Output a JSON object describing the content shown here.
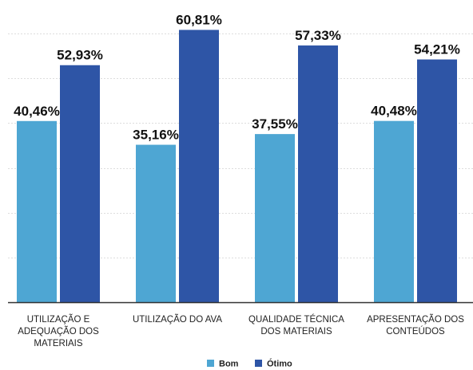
{
  "chart_data": {
    "type": "bar",
    "categories": [
      [
        "UTILIZAÇÃO E",
        "ADEQUAÇÃO DOS",
        "MATERIAIS"
      ],
      [
        "UTILIZAÇÃO DO AVA"
      ],
      [
        "QUALIDADE TÉCNICA",
        "DOS MATERIAIS"
      ],
      [
        "APRESENTAÇÃO DOS",
        "CONTEÚDOS"
      ]
    ],
    "series": [
      {
        "name": "Bom",
        "color": "#4ea6d3",
        "values": [
          40.46,
          35.16,
          37.55,
          40.48
        ],
        "labels": [
          "40,46%",
          "35,16%",
          "37,55%",
          "40,48%"
        ]
      },
      {
        "name": "Ótimo",
        "color": "#2e55a6",
        "values": [
          52.93,
          60.81,
          57.33,
          54.21
        ],
        "labels": [
          "52,93%",
          "60,81%",
          "57,33%",
          "54,21%"
        ]
      }
    ],
    "ylim": [
      0,
      62.5
    ],
    "grid": true,
    "legend": "bottom-center"
  }
}
